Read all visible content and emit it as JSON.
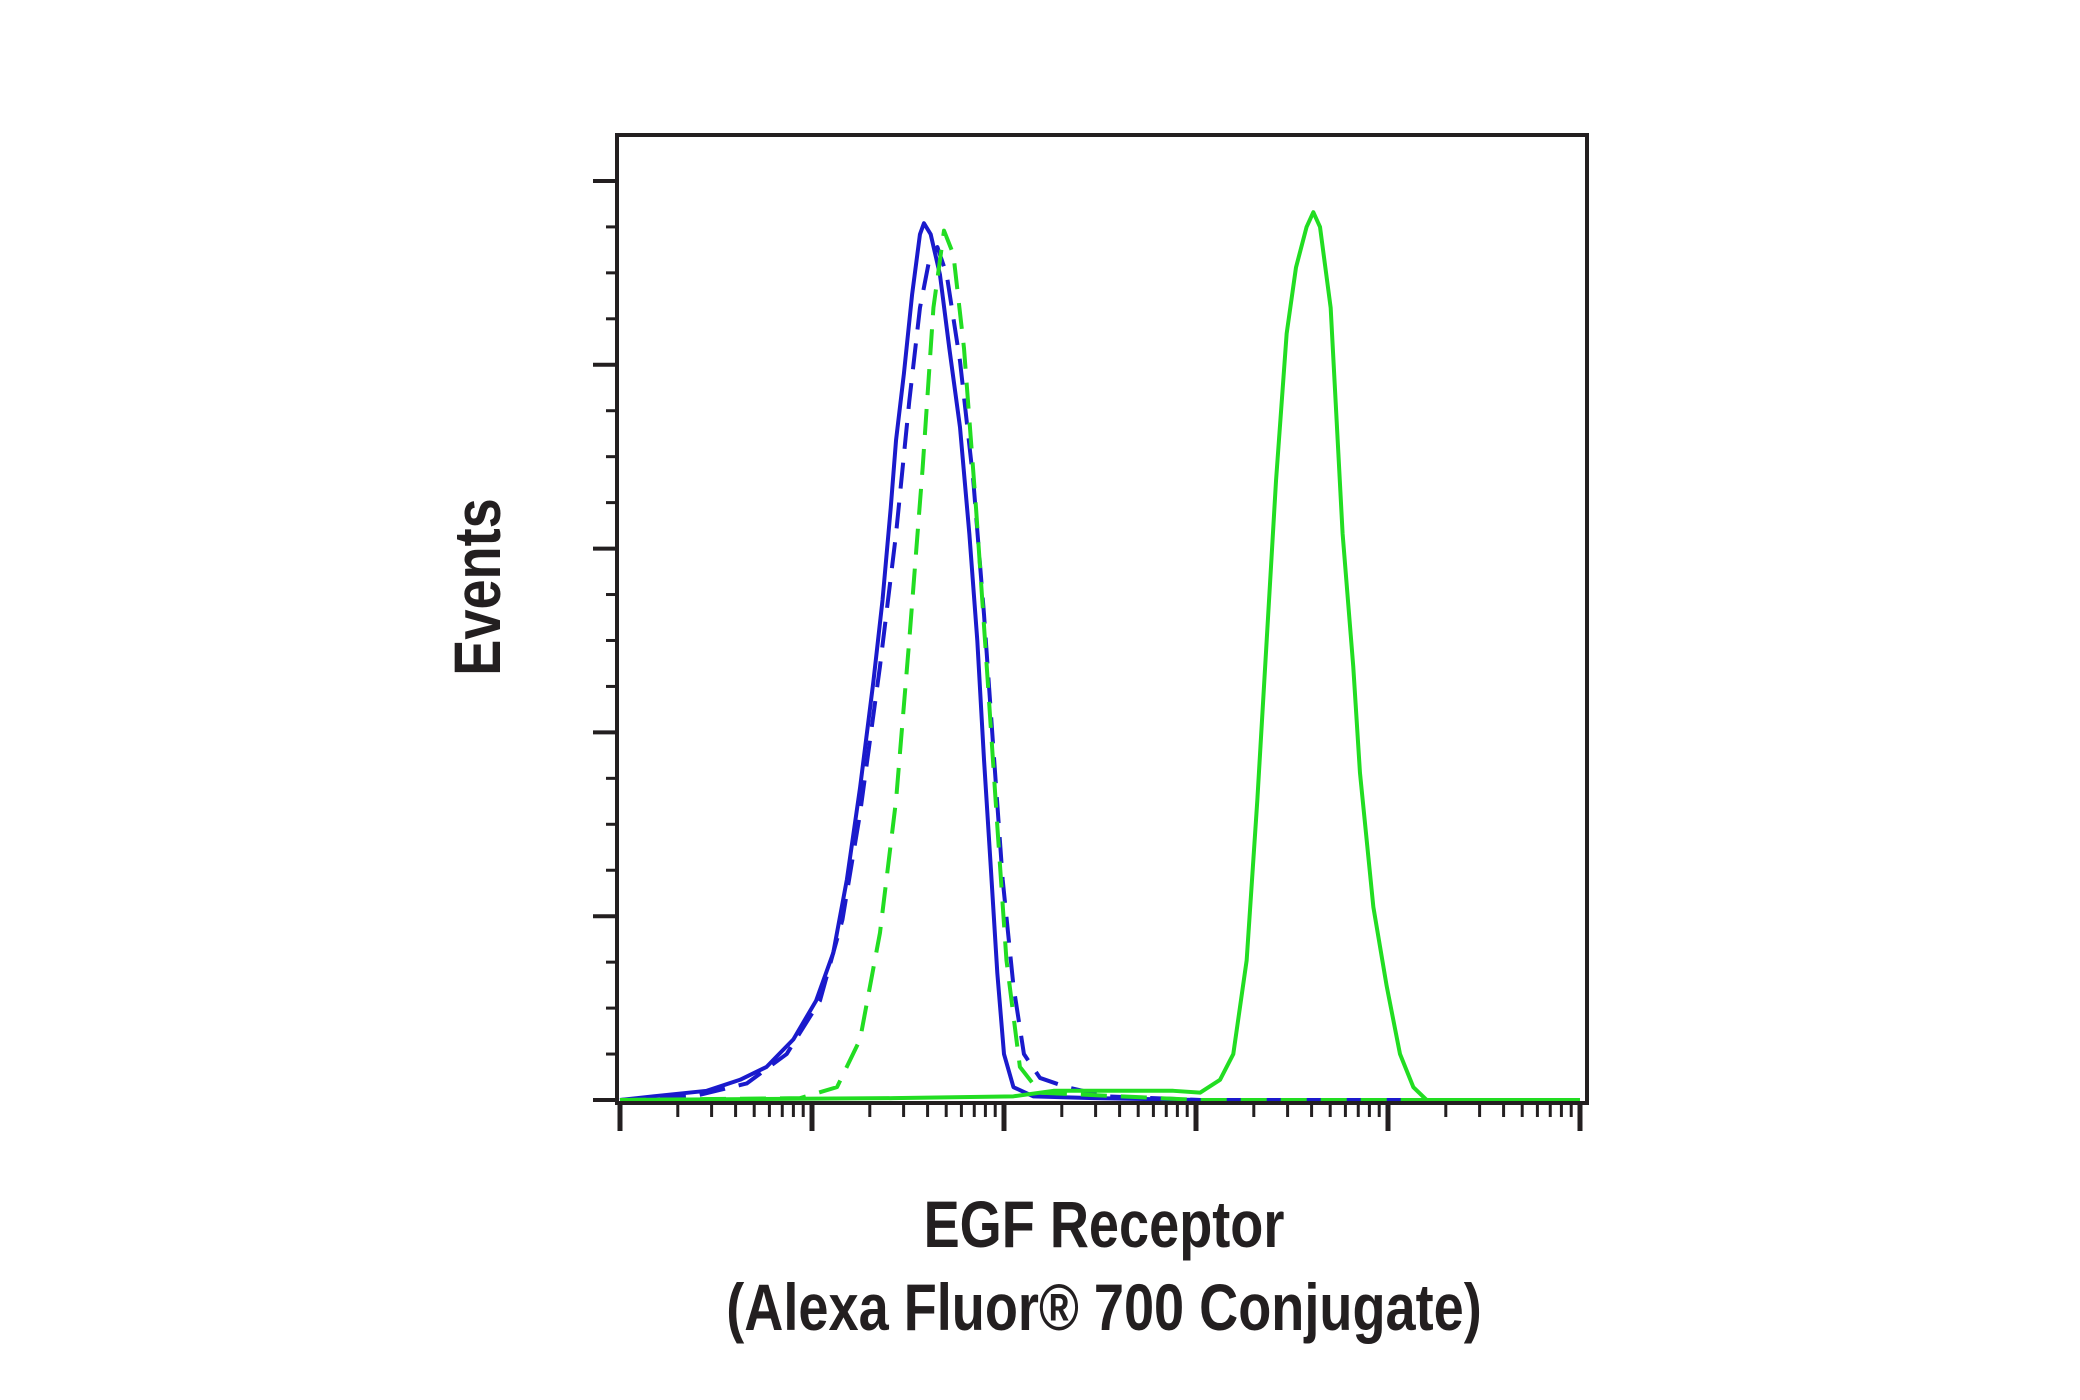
{
  "chart_data": {
    "type": "line",
    "x_label": [
      "EGF Receptor",
      "(Alexa Fluor® 700 Conjugate)"
    ],
    "y_label": "Events",
    "x_scale": "log",
    "xlim": [
      1,
      100000
    ],
    "xticks": [
      1,
      10,
      100,
      1000,
      10000,
      100000
    ],
    "xminorticks": [
      2,
      3,
      4,
      5,
      6,
      7,
      8,
      9,
      20,
      30,
      40,
      50,
      60,
      70,
      80,
      90,
      200,
      300,
      400,
      500,
      600,
      700,
      800,
      900,
      2000,
      3000,
      4000,
      5000,
      6000,
      7000,
      8000,
      9000,
      20000,
      30000,
      40000,
      50000,
      60000,
      70000,
      80000,
      90000
    ],
    "ylim": [
      0,
      5.25
    ],
    "yticks": [
      0,
      1,
      2,
      3,
      4,
      5
    ],
    "yminorticks": [
      0.25,
      0.5,
      0.75,
      1.25,
      1.5,
      1.75,
      2.25,
      2.5,
      2.75,
      3.25,
      3.5,
      3.75,
      4.25,
      4.5,
      4.75
    ],
    "series": [
      {
        "color": "#1a1acc",
        "line_style": "solid",
        "x": [
          1,
          1.49,
          2.83,
          4.22,
          5.8,
          8.0,
          10.5,
          12.9,
          15.2,
          17.8,
          20.9,
          23.3,
          25.7,
          27.4,
          30.1,
          33.2,
          36.5,
          38.3,
          41.5,
          46.4,
          51.9,
          59.0,
          66.0,
          72.6,
          78.7,
          85.3,
          92.3,
          100,
          112,
          142,
          292,
          1050,
          100000
        ],
        "values": [
          0,
          0.02,
          0.05,
          0.11,
          0.18,
          0.33,
          0.54,
          0.8,
          1.2,
          1.7,
          2.28,
          2.72,
          3.22,
          3.59,
          3.95,
          4.38,
          4.71,
          4.77,
          4.71,
          4.49,
          4.09,
          3.66,
          3.08,
          2.5,
          1.85,
          1.27,
          0.69,
          0.25,
          0.07,
          0.02,
          0.01,
          0,
          0
        ]
      },
      {
        "color": "#1a1acc",
        "line_style": "dashed",
        "x": [
          1,
          2.41,
          4.57,
          7.38,
          11.0,
          14.4,
          17.8,
          22.6,
          27.4,
          32.1,
          36.5,
          40.8,
          45.0,
          50.3,
          59.0,
          69.2,
          78.7,
          87.9,
          98.4,
          112,
          127,
          154,
          212,
          343,
          1050,
          100000
        ],
        "values": [
          0,
          0.02,
          0.09,
          0.25,
          0.54,
          0.98,
          1.56,
          2.36,
          3.08,
          3.8,
          4.31,
          4.57,
          4.64,
          4.49,
          4.02,
          3.37,
          2.64,
          1.92,
          1.2,
          0.62,
          0.25,
          0.12,
          0.07,
          0.02,
          0,
          0
        ]
      },
      {
        "color": "#22dd22",
        "line_style": "dashed",
        "x": [
          1,
          8.66,
          13.5,
          17.8,
          22.6,
          27.4,
          32.1,
          37.7,
          42.9,
          48.7,
          54.5,
          61.9,
          71.5,
          81.3,
          92.3,
          103,
          121,
          154,
          1050,
          100000
        ],
        "values": [
          0,
          0.01,
          0.07,
          0.33,
          0.91,
          1.63,
          2.5,
          3.44,
          4.31,
          4.73,
          4.6,
          4.09,
          3.22,
          2.36,
          1.49,
          0.76,
          0.18,
          0.04,
          0,
          0
        ]
      },
      {
        "color": "#22dd22",
        "line_style": "solid",
        "x": [
          1,
          26.5,
          112,
          181,
          762,
          1050,
          1334,
          1564,
          1836,
          2086,
          2334,
          2611,
          2966,
          3318,
          3768,
          4084,
          4424,
          5028,
          5803,
          6590,
          7145,
          8389,
          9842,
          11548,
          13549,
          15894,
          100000
        ],
        "values": [
          0,
          0.01,
          0.02,
          0.05,
          0.05,
          0.04,
          0.11,
          0.25,
          0.76,
          1.63,
          2.5,
          3.37,
          4.17,
          4.53,
          4.75,
          4.83,
          4.75,
          4.31,
          3.08,
          2.36,
          1.78,
          1.05,
          0.62,
          0.25,
          0.07,
          0,
          0
        ]
      }
    ]
  }
}
